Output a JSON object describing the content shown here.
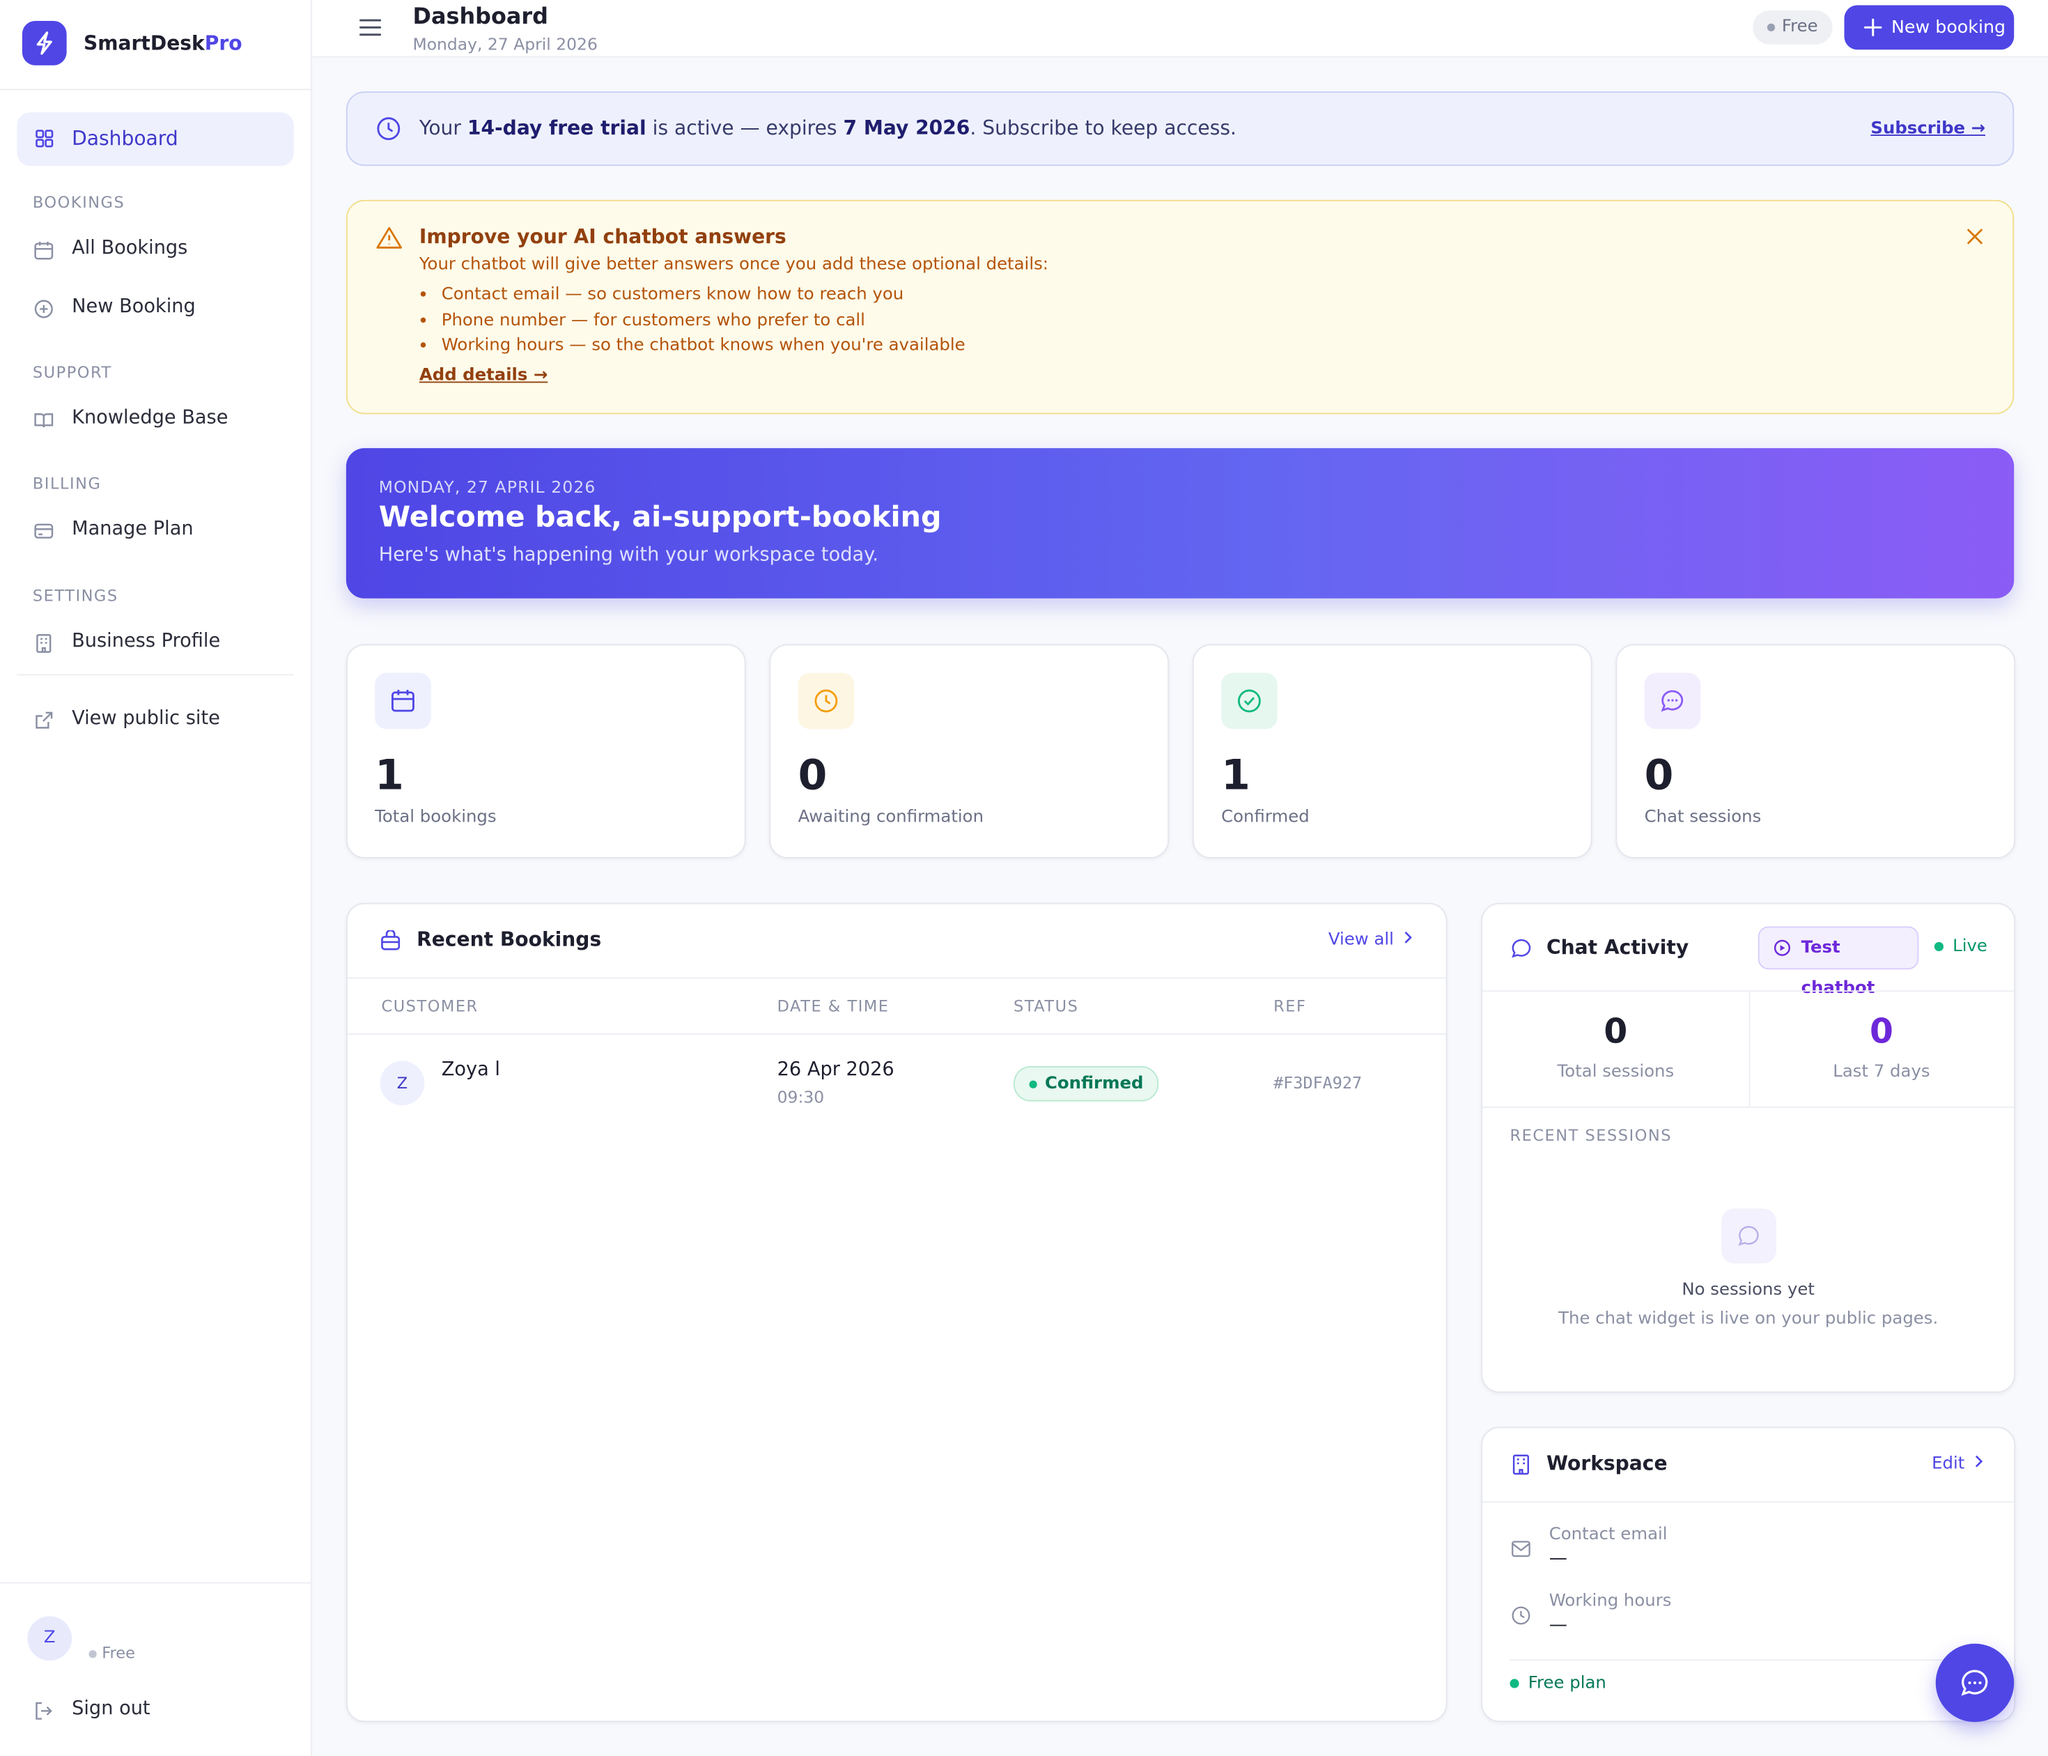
{
  "sidebar": {
    "brand": "SmartDesk",
    "brand_accent": "Pro",
    "active_item": "Dashboard",
    "sections": [
      {
        "title": "BOOKINGS",
        "items": [
          "All Bookings",
          "New Booking"
        ]
      },
      {
        "title": "SUPPORT",
        "items": [
          "Knowledge Base"
        ]
      },
      {
        "title": "BILLING",
        "items": [
          "Manage Plan"
        ]
      },
      {
        "title": "SETTINGS",
        "items": [
          "Business Profile"
        ]
      }
    ],
    "view_public_site": "View public site",
    "user": {
      "initial": "Z",
      "plan": "Free"
    },
    "sign_out": "Sign out"
  },
  "header": {
    "title": "Dashboard",
    "date": "Monday, 27 April 2026",
    "plan_badge": "Free",
    "button": "New booking"
  },
  "trial_banner": {
    "parts": [
      "Your ",
      "14-day free trial",
      " is active — expires ",
      "7 May 2026",
      ". Subscribe to keep access."
    ],
    "link": "Subscribe →"
  },
  "alert": {
    "title": "Improve your AI chatbot answers",
    "intro": "Your chatbot will give better answers once you add these optional details:",
    "items": [
      "Contact email — so customers know how to reach you",
      "Phone number — for customers who prefer to call",
      "Working hours — so the chatbot knows when you're available"
    ],
    "link": "Add details →"
  },
  "hero": {
    "date": "MONDAY, 27 APRIL 2026",
    "title": "Welcome back, ai-support-booking",
    "subtitle": "Here's what's happening with your workspace today."
  },
  "stats": [
    {
      "value": 1,
      "label": "Total bookings"
    },
    {
      "value": 0,
      "label": "Awaiting confirmation"
    },
    {
      "value": 1,
      "label": "Confirmed"
    },
    {
      "value": 0,
      "label": "Chat sessions"
    }
  ],
  "recent_bookings": {
    "title": "Recent Bookings",
    "view_all": "View all",
    "columns": [
      "CUSTOMER",
      "DATE & TIME",
      "STATUS",
      "REF"
    ],
    "rows": [
      {
        "initial": "Z",
        "customer": "Zoya l",
        "date": "26 Apr 2026",
        "time": "09:30",
        "status": "Confirmed",
        "ref": "#F3DFA927"
      }
    ]
  },
  "chat_activity": {
    "title": "Chat Activity",
    "button": "Test chatbot",
    "status": "Live",
    "stats": [
      {
        "value": 0,
        "label": "Total sessions"
      },
      {
        "value": 0,
        "label": "Last 7 days"
      }
    ],
    "recent_sessions": "RECENT SESSIONS",
    "empty_title": "No sessions yet",
    "empty_text": "The chat widget is live on your public pages."
  },
  "workspace": {
    "title": "Workspace",
    "edit": "Edit",
    "fields": [
      {
        "label": "Contact email",
        "value": "—"
      },
      {
        "label": "Working hours",
        "value": "—"
      }
    ],
    "plan": "Free plan"
  }
}
